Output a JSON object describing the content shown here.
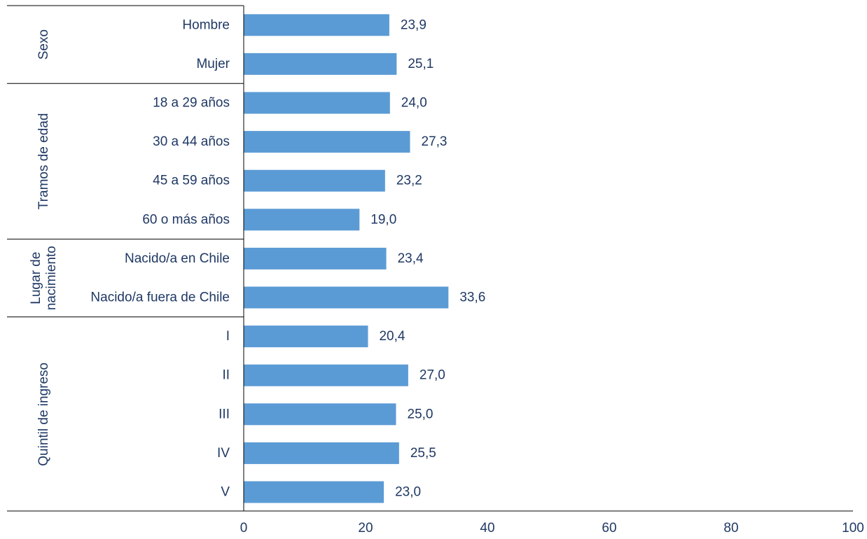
{
  "chart_data": {
    "type": "bar",
    "orientation": "horizontal",
    "xlim": [
      0,
      100
    ],
    "xticks": [
      0,
      20,
      40,
      60,
      80,
      100
    ],
    "grid": false,
    "legend": "none",
    "bar_color": "#5b9bd5",
    "text_color": "#1f3864",
    "categories": [
      "Hombre",
      "Mujer",
      "18 a 29 años",
      "30 a 44 años",
      "45 a 59 años",
      "60 o más años",
      "Nacido/a en Chile",
      "Nacido/a fuera de Chile",
      "I",
      "II",
      "III",
      "IV",
      "V"
    ],
    "values": [
      23.9,
      25.1,
      24.0,
      27.3,
      23.2,
      19.0,
      23.4,
      33.6,
      20.4,
      27.0,
      25.0,
      25.5,
      23.0
    ],
    "value_labels": [
      "23,9",
      "25,1",
      "24,0",
      "27,3",
      "23,2",
      "19,0",
      "23,4",
      "33,6",
      "20,4",
      "27,0",
      "25,0",
      "25,5",
      "23,0"
    ],
    "groups": [
      {
        "label_lines": [
          "Sexo"
        ],
        "start": 0,
        "end": 1
      },
      {
        "label_lines": [
          "Tramos de edad"
        ],
        "start": 2,
        "end": 5
      },
      {
        "label_lines": [
          "Lugar de",
          "nacimiento"
        ],
        "start": 6,
        "end": 7
      },
      {
        "label_lines": [
          "Quintil de ingreso"
        ],
        "start": 8,
        "end": 12
      }
    ]
  }
}
